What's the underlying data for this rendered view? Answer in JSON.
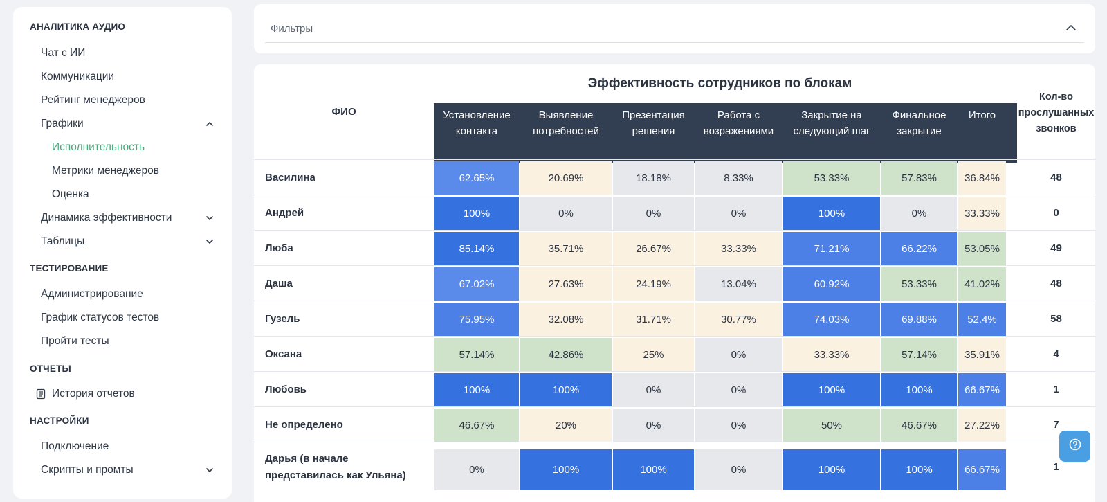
{
  "sidebar": {
    "sections": [
      {
        "label": "АНАЛИТИКА АУДИО"
      },
      {
        "label": "ТЕСТИРОВАНИЕ"
      },
      {
        "label": "ОТЧЕТЫ"
      },
      {
        "label": "НАСТРОЙКИ"
      }
    ],
    "items": {
      "chat": "Чат с ИИ",
      "communications": "Коммуникации",
      "rating": "Рейтинг менеджеров",
      "charts": "Графики",
      "execution": "Исполнительность",
      "metrics": "Метрики менеджеров",
      "evaluation": "Оценка",
      "dynamics": "Динамика эффективности",
      "tables": "Таблицы",
      "administration": "Администрирование",
      "test_status_chart": "График статусов тестов",
      "take_tests": "Пройти тесты",
      "report_history": "История отчетов",
      "connection": "Подключение",
      "scripts": "Скрипты и промты"
    },
    "active_item": "Исполнительность",
    "active_color": "#4aa87a"
  },
  "filters": {
    "title": "Фильтры"
  },
  "table": {
    "title": "Эффективность сотрудников по блокам",
    "fio_header": "ФИО",
    "calls_header": "Кол-во прослушанных звонков",
    "columns": [
      "Установление контакта",
      "Выявление потребностей",
      "Презентация решения",
      "Работа с возражениями",
      "Закрытие на следующий шаг",
      "Финальное закрытие",
      "Итого"
    ],
    "rows": [
      {
        "name": "Василина",
        "values": [
          "62.65%",
          "20.69%",
          "18.18%",
          "8.33%",
          "53.33%",
          "57.83%",
          "36.84%"
        ],
        "calls": "48"
      },
      {
        "name": "Андрей",
        "values": [
          "100%",
          "0%",
          "0%",
          "0%",
          "100%",
          "0%",
          "33.33%"
        ],
        "calls": "0"
      },
      {
        "name": "Люба",
        "values": [
          "85.14%",
          "35.71%",
          "26.67%",
          "33.33%",
          "71.21%",
          "66.22%",
          "53.05%"
        ],
        "calls": "49"
      },
      {
        "name": "Даша",
        "values": [
          "67.02%",
          "27.63%",
          "24.19%",
          "13.04%",
          "60.92%",
          "53.33%",
          "41.02%"
        ],
        "calls": "48"
      },
      {
        "name": "Гузель",
        "values": [
          "75.95%",
          "32.08%",
          "31.71%",
          "30.77%",
          "74.03%",
          "69.88%",
          "52.4%"
        ],
        "calls": "58"
      },
      {
        "name": "Оксана",
        "values": [
          "57.14%",
          "42.86%",
          "25%",
          "0%",
          "33.33%",
          "57.14%",
          "35.91%"
        ],
        "calls": "4"
      },
      {
        "name": "Любовь",
        "values": [
          "100%",
          "100%",
          "0%",
          "0%",
          "100%",
          "100%",
          "66.67%"
        ],
        "calls": "1"
      },
      {
        "name": "Не определено",
        "values": [
          "46.67%",
          "20%",
          "0%",
          "0%",
          "50%",
          "46.67%",
          "27.22%"
        ],
        "calls": "7"
      },
      {
        "name": "Дарья (в начале представилась как Ульяна)",
        "values": [
          "0%",
          "100%",
          "100%",
          "0%",
          "100%",
          "100%",
          "66.67%"
        ],
        "calls": "1"
      }
    ],
    "cell_colors": {
      "blue_dark": "#3572e0",
      "blue_mid": "#4d80e6",
      "blue_light": "#5a8aea",
      "green": "#cfe3cb",
      "beige": "#fbf1e1",
      "gray": "#e6e8ec",
      "header_bg": "#323f52"
    },
    "row_colors": [
      [
        "blue_light",
        "beige",
        "gray",
        "gray",
        "green",
        "green",
        "beige"
      ],
      [
        "blue_dark",
        "gray",
        "gray",
        "gray",
        "blue_dark",
        "gray",
        "beige"
      ],
      [
        "blue_dark",
        "beige",
        "beige",
        "beige",
        "blue_mid",
        "blue_mid",
        "green"
      ],
      [
        "blue_light",
        "beige",
        "beige",
        "gray",
        "blue_mid",
        "green",
        "green"
      ],
      [
        "blue_mid",
        "beige",
        "beige",
        "beige",
        "blue_mid",
        "blue_mid",
        "blue_mid"
      ],
      [
        "green",
        "green",
        "beige",
        "gray",
        "beige",
        "green",
        "beige"
      ],
      [
        "blue_dark",
        "blue_dark",
        "gray",
        "gray",
        "blue_dark",
        "blue_dark",
        "blue_mid"
      ],
      [
        "green",
        "beige",
        "gray",
        "gray",
        "green",
        "green",
        "beige"
      ],
      [
        "gray",
        "blue_dark",
        "blue_dark",
        "gray",
        "blue_dark",
        "blue_dark",
        "blue_mid"
      ]
    ]
  },
  "help_button": {
    "icon": "help-circle-icon",
    "color": "#4a9fe3"
  }
}
